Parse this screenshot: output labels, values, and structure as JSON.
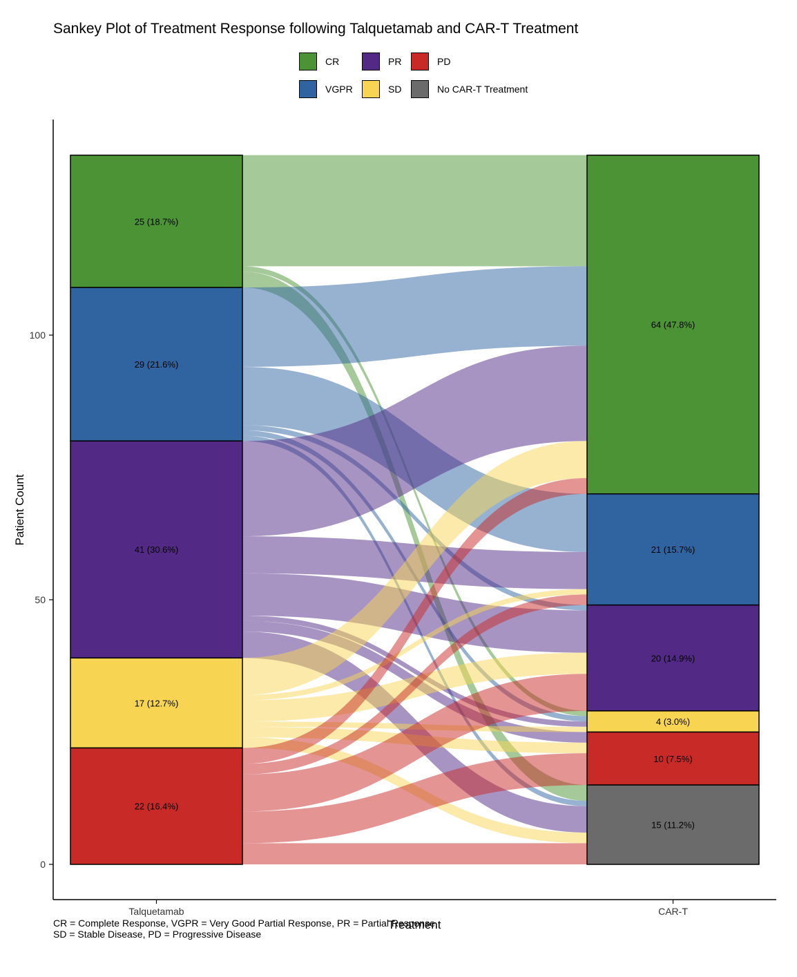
{
  "title": "Sankey Plot of Treatment Response following Talquetamab and CAR-T Treatment",
  "legend": {
    "placement": "top",
    "items": [
      {
        "key": "CR",
        "label": "CR",
        "color": "#4b9334"
      },
      {
        "key": "PR",
        "label": "PR",
        "color": "#522a85"
      },
      {
        "key": "PD",
        "label": "PD",
        "color": "#c82a28"
      },
      {
        "key": "VGPR",
        "label": "VGPR",
        "color": "#2f64a1"
      },
      {
        "key": "SD",
        "label": "SD",
        "color": "#f7d553"
      },
      {
        "key": "NoCART",
        "label": "No CAR-T Treatment",
        "color": "#6b6b6b"
      }
    ]
  },
  "footnote": {
    "line1": "CR = Complete Response, VGPR = Very Good Partial Response, PR = Partial Response,",
    "line2": "SD = Stable Disease, PD = Progressive Disease"
  },
  "chart_data": {
    "type": "sankey",
    "xlabel": "Treatment",
    "ylabel": "Patient Count",
    "ylim": [
      -6,
      141
    ],
    "yticks": [
      0,
      50,
      100
    ],
    "grid": false,
    "axes": [
      "Talquetamab",
      "CAR-T"
    ],
    "stratum_order": [
      "CR",
      "VGPR",
      "PR",
      "SD",
      "PD",
      "NoCART"
    ],
    "strata": {
      "Talquetamab": [
        {
          "key": "CR",
          "count": 25,
          "label": "25 (18.7%)"
        },
        {
          "key": "VGPR",
          "count": 29,
          "label": "29 (21.6%)"
        },
        {
          "key": "PR",
          "count": 41,
          "label": "41 (30.6%)"
        },
        {
          "key": "SD",
          "count": 17,
          "label": "17 (12.7%)"
        },
        {
          "key": "PD",
          "count": 22,
          "label": "22 (16.4%)"
        }
      ],
      "CAR-T": [
        {
          "key": "CR",
          "count": 64,
          "label": "64 (47.8%)"
        },
        {
          "key": "VGPR",
          "count": 21,
          "label": "21 (15.7%)"
        },
        {
          "key": "PR",
          "count": 20,
          "label": "20 (14.9%)"
        },
        {
          "key": "SD",
          "count": 4,
          "label": "4 (3.0%)"
        },
        {
          "key": "PD",
          "count": 10,
          "label": "10 (7.5%)"
        },
        {
          "key": "NoCART",
          "count": 15,
          "label": "15 (11.2%)"
        }
      ]
    },
    "flows": [
      {
        "from": "CR",
        "to": "CR",
        "value": 21
      },
      {
        "from": "CR",
        "to": "SD",
        "value": 1
      },
      {
        "from": "CR",
        "to": "NoCART",
        "value": 3
      },
      {
        "from": "VGPR",
        "to": "CR",
        "value": 15
      },
      {
        "from": "VGPR",
        "to": "VGPR",
        "value": 11
      },
      {
        "from": "VGPR",
        "to": "PR",
        "value": 1
      },
      {
        "from": "VGPR",
        "to": "SD",
        "value": 1
      },
      {
        "from": "VGPR",
        "to": "NoCART",
        "value": 1
      },
      {
        "from": "PR",
        "to": "CR",
        "value": 18
      },
      {
        "from": "PR",
        "to": "VGPR",
        "value": 7
      },
      {
        "from": "PR",
        "to": "PR",
        "value": 8
      },
      {
        "from": "PR",
        "to": "SD",
        "value": 1
      },
      {
        "from": "PR",
        "to": "PD",
        "value": 2
      },
      {
        "from": "PR",
        "to": "NoCART",
        "value": 5
      },
      {
        "from": "SD",
        "to": "CR",
        "value": 7
      },
      {
        "from": "SD",
        "to": "VGPR",
        "value": 1
      },
      {
        "from": "SD",
        "to": "PR",
        "value": 4
      },
      {
        "from": "SD",
        "to": "SD",
        "value": 1
      },
      {
        "from": "SD",
        "to": "PD",
        "value": 2
      },
      {
        "from": "SD",
        "to": "NoCART",
        "value": 2
      },
      {
        "from": "PD",
        "to": "CR",
        "value": 3
      },
      {
        "from": "PD",
        "to": "VGPR",
        "value": 2
      },
      {
        "from": "PD",
        "to": "PR",
        "value": 7
      },
      {
        "from": "PD",
        "to": "SD",
        "value": 0
      },
      {
        "from": "PD",
        "to": "PD",
        "value": 6
      },
      {
        "from": "PD",
        "to": "NoCART",
        "value": 4
      }
    ]
  }
}
